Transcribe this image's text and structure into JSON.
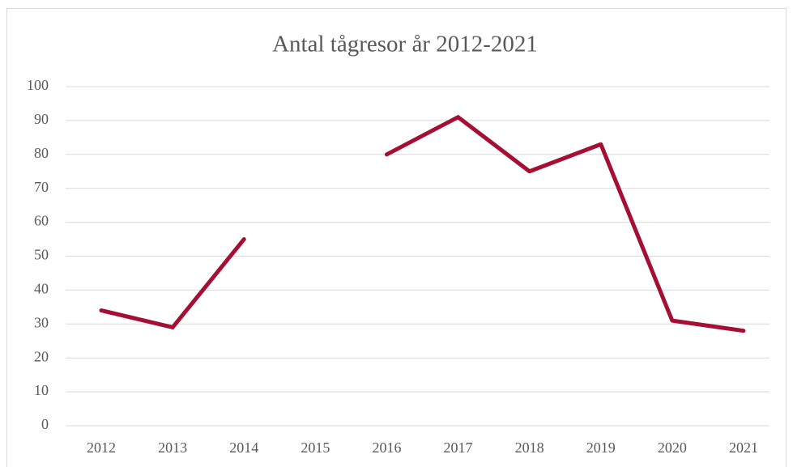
{
  "chart_data": {
    "type": "line",
    "title": "Antal tågresor år 2012-2021",
    "categories": [
      "2012",
      "2013",
      "2014",
      "2015",
      "2016",
      "2017",
      "2018",
      "2019",
      "2020",
      "2021"
    ],
    "series": [
      {
        "name": "Antal tågresor",
        "color": "#a50f33",
        "values": [
          34,
          29,
          55,
          null,
          80,
          91,
          75,
          83,
          31,
          28
        ]
      }
    ],
    "ylim": [
      0,
      100
    ],
    "yticks": [
      0,
      10,
      20,
      30,
      40,
      50,
      60,
      70,
      80,
      90,
      100
    ],
    "grid": true
  }
}
